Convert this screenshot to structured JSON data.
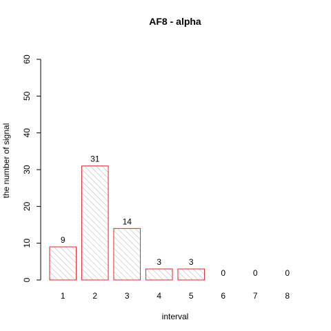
{
  "chart_data": {
    "type": "bar",
    "title": "AF8  -  alpha",
    "xlabel": "interval",
    "ylabel": "the number of signal",
    "categories": [
      "1",
      "2",
      "3",
      "4",
      "5",
      "6",
      "7",
      "8"
    ],
    "values": [
      9,
      31,
      14,
      3,
      3,
      0,
      0,
      0
    ],
    "data_labels": [
      "9",
      "31",
      "14",
      "3",
      "3",
      "0",
      "0",
      "0"
    ],
    "ylim": [
      0,
      60
    ],
    "yticks": [
      0,
      10,
      20,
      30,
      40,
      50,
      60
    ],
    "ytick_labels": [
      "0",
      "10",
      "20",
      "30",
      "40",
      "50",
      "60"
    ],
    "bar_border_color": "#e0242c",
    "bar_hatch_color": "#9a9a9a",
    "grid": false,
    "legend": "none"
  }
}
